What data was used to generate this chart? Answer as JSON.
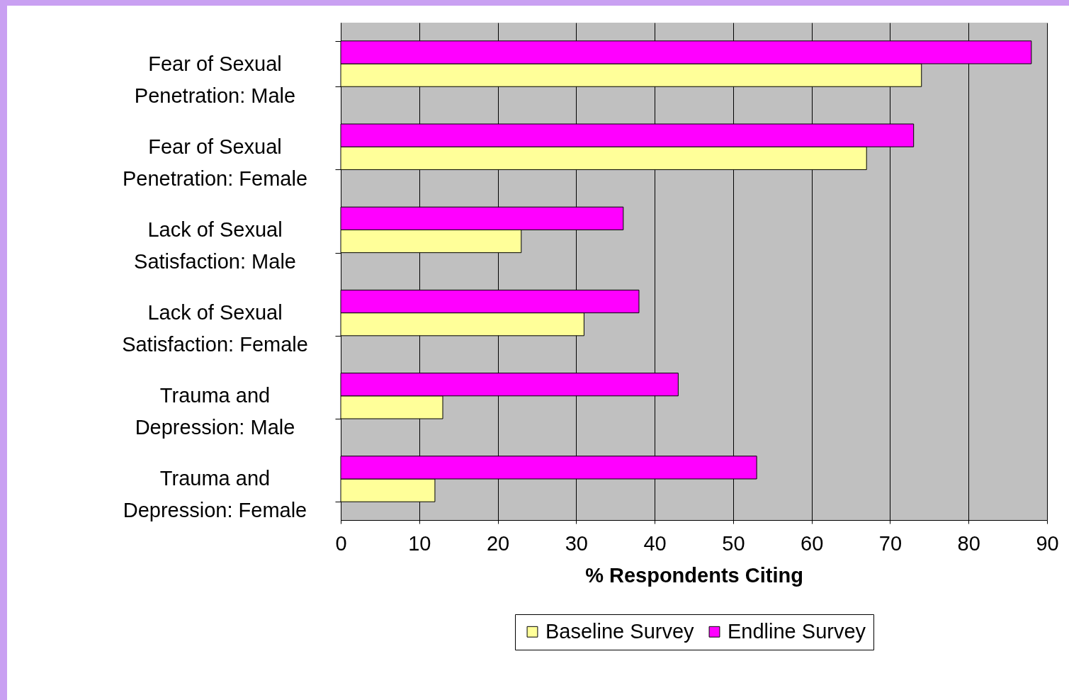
{
  "chart_data": {
    "type": "bar",
    "orientation": "horizontal",
    "xlabel": "% Respondents Citing",
    "categories": [
      "Fear of Sexual Penetration: Male",
      "Fear of Sexual Penetration: Female",
      "Lack of Sexual Satisfaction: Male",
      "Lack of Sexual Satisfaction: Female",
      "Trauma and Depression: Male",
      "Trauma and Depression: Female"
    ],
    "series": [
      {
        "name": "Baseline Survey",
        "color": "#ffff99",
        "values": [
          74,
          67,
          23,
          31,
          13,
          12
        ]
      },
      {
        "name": "Endline Survey",
        "color": "#ff00ff",
        "values": [
          88,
          73,
          36,
          38,
          43,
          53
        ]
      }
    ],
    "xlim": [
      0,
      90
    ],
    "xticks": [
      0,
      10,
      20,
      30,
      40,
      50,
      60,
      70,
      80,
      90
    ],
    "grid": "x",
    "legend": "bottom"
  }
}
